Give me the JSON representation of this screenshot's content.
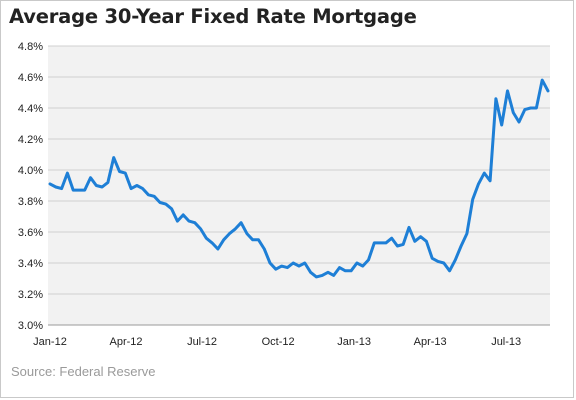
{
  "title": "Average 30-Year Fixed Rate Mortgage",
  "source": "Source: Federal Reserve",
  "chart_data": {
    "type": "line",
    "title": "Average 30-Year Fixed Rate Mortgage",
    "xlabel": "",
    "ylabel": "",
    "ylim": [
      3.0,
      4.8
    ],
    "y_ticks": [
      "3.0%",
      "3.2%",
      "3.4%",
      "3.6%",
      "3.8%",
      "4.0%",
      "4.2%",
      "4.4%",
      "4.6%",
      "4.8%"
    ],
    "x_ticks": [
      "Jan-12",
      "Apr-12",
      "Jul-12",
      "Oct-12",
      "Jan-13",
      "Apr-13",
      "Jul-13"
    ],
    "grid": "horizontal",
    "plot_background": "#f2f2f2",
    "line_color": "#1e7fd6",
    "series": [
      {
        "values": [
          3.91,
          3.89,
          3.88,
          3.98,
          3.87,
          3.87,
          3.87,
          3.95,
          3.9,
          3.89,
          3.92,
          4.08,
          3.99,
          3.98,
          3.88,
          3.9,
          3.88,
          3.84,
          3.83,
          3.79,
          3.78,
          3.75,
          3.67,
          3.71,
          3.67,
          3.66,
          3.62,
          3.56,
          3.53,
          3.49,
          3.55,
          3.59,
          3.62,
          3.66,
          3.59,
          3.55,
          3.55,
          3.49,
          3.4,
          3.36,
          3.38,
          3.37,
          3.4,
          3.38,
          3.4,
          3.34,
          3.31,
          3.32,
          3.34,
          3.32,
          3.37,
          3.35,
          3.35,
          3.4,
          3.38,
          3.42,
          3.53,
          3.53,
          3.53,
          3.56,
          3.51,
          3.52,
          3.63,
          3.54,
          3.57,
          3.54,
          3.43,
          3.41,
          3.4,
          3.35,
          3.42,
          3.51,
          3.59,
          3.81,
          3.91,
          3.98,
          3.93,
          4.46,
          4.29,
          4.51,
          4.37,
          4.31,
          4.39,
          4.4,
          4.4,
          4.58,
          4.51
        ]
      }
    ]
  }
}
